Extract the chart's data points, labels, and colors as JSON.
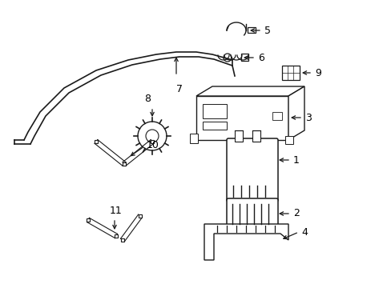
{
  "bg_color": "#ffffff",
  "line_color": "#1a1a1a",
  "text_color": "#000000",
  "fig_w": 4.89,
  "fig_h": 3.6,
  "dpi": 100
}
